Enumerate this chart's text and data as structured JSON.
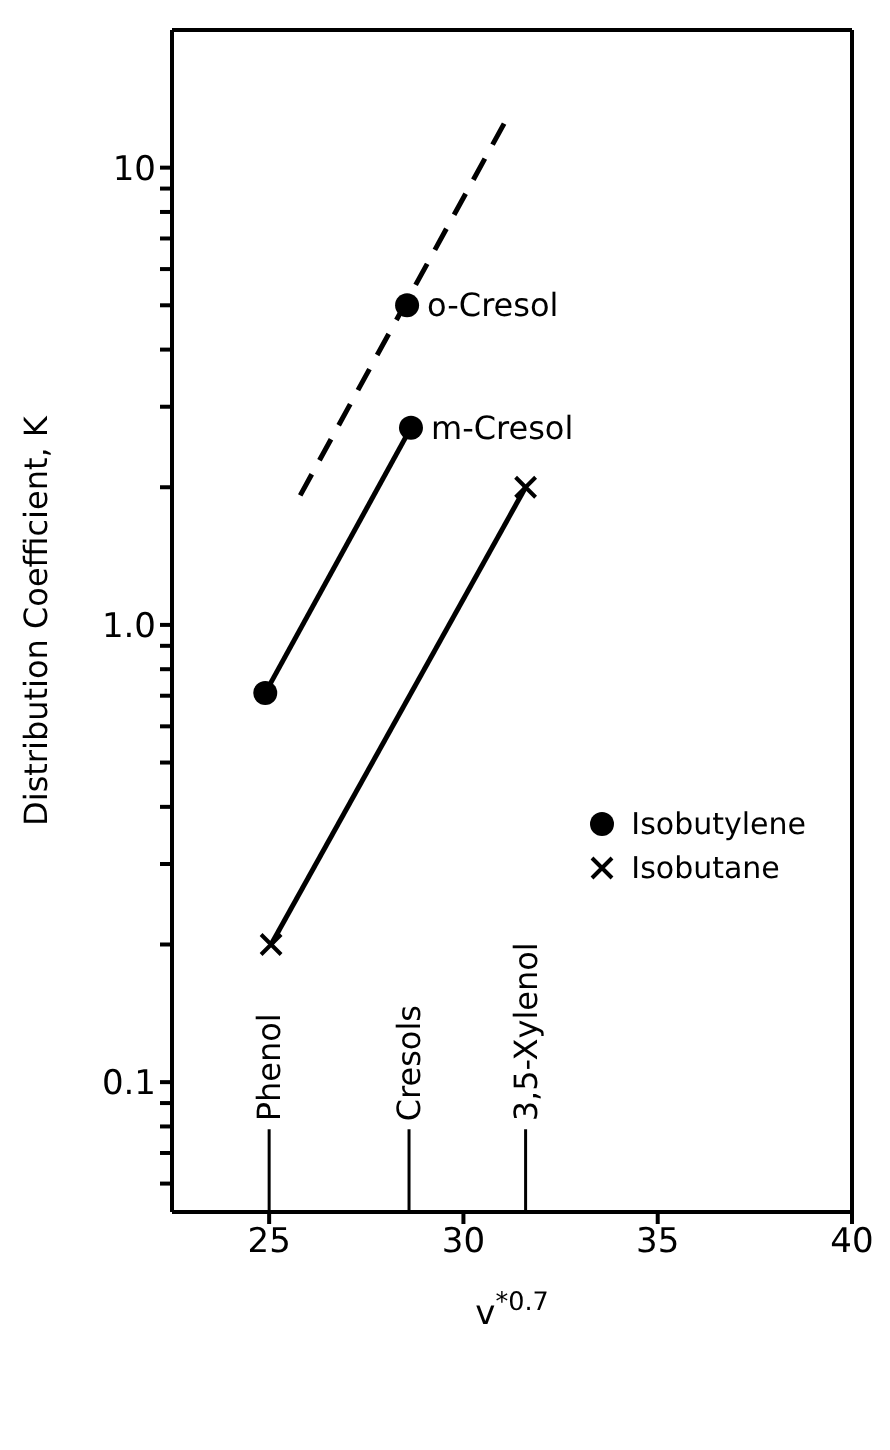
{
  "chart_data": {
    "type": "scatter",
    "xlabel": "v$^{*0.7}$",
    "ylabel": "Distribution Coefficient, K",
    "log": "y",
    "xlim": [
      22.5,
      40
    ],
    "xticks": [
      25,
      30,
      35,
      40
    ],
    "ylim": [
      0.052,
      20
    ],
    "yticks": [
      {
        "value": 0.06,
        "label": null
      },
      {
        "value": 0.07,
        "label": null
      },
      {
        "value": 0.08,
        "label": null
      },
      {
        "value": 0.09,
        "label": null
      },
      0.1,
      {
        "value": 0.2,
        "label": null
      },
      {
        "value": 0.3,
        "label": null
      },
      {
        "value": 0.4,
        "label": null
      },
      {
        "value": 0.5,
        "label": null
      },
      {
        "value": 0.6,
        "label": null
      },
      {
        "value": 0.7,
        "label": null
      },
      {
        "value": 0.8,
        "label": null
      },
      {
        "value": 0.9,
        "label": null
      },
      {
        "value": 1,
        "label": "1.0"
      },
      {
        "value": 2,
        "label": null
      },
      {
        "value": 3,
        "label": null
      },
      {
        "value": 4,
        "label": null
      },
      {
        "value": 5,
        "label": null
      },
      {
        "value": 6,
        "label": null
      },
      {
        "value": 7,
        "label": null
      },
      {
        "value": 8,
        "label": null
      },
      {
        "value": 9,
        "label": null
      },
      10
    ],
    "legend": "right",
    "grid": false,
    "series": [
      {
        "name": "Isobutylene",
        "marker": "circle",
        "color": "#000000",
        "x": [
          24.9,
          28.55,
          28.65
        ],
        "values": [
          0.71,
          5.0,
          2.7
        ]
      },
      {
        "name": "Isobutane",
        "marker": "cross",
        "color": "#000000",
        "x": [
          25.05,
          31.6
        ],
        "values": [
          0.2,
          2.0
        ]
      },
      {
        "type": "line",
        "line_style": "solid",
        "marker": "none",
        "color": "#000000",
        "x": [
          24.9,
          28.65
        ],
        "values": [
          0.71,
          2.7
        ]
      },
      {
        "type": "line",
        "line_style": "solid",
        "marker": "none",
        "color": "#000000",
        "x": [
          25.05,
          31.6
        ],
        "values": [
          0.2,
          2.0
        ]
      },
      {
        "type": "line",
        "line_style": "dashed",
        "marker": "none",
        "color": "#000000",
        "x": [
          25.8,
          31.05
        ],
        "values": [
          1.92,
          12.5
        ]
      }
    ],
    "ref_lines": [
      {
        "axis": "x",
        "value": 25,
        "label": "Phenol"
      },
      {
        "axis": "x",
        "value": 28.6,
        "label": "Cresols"
      },
      {
        "axis": "x",
        "value": 31.6,
        "label": "3,5-Xylenol"
      }
    ],
    "annotations": [
      {
        "text": "o-Cresol",
        "x": 28.55,
        "y": 5.0
      },
      {
        "text": "m-Cresol",
        "x": 28.65,
        "y": 2.7
      }
    ]
  }
}
